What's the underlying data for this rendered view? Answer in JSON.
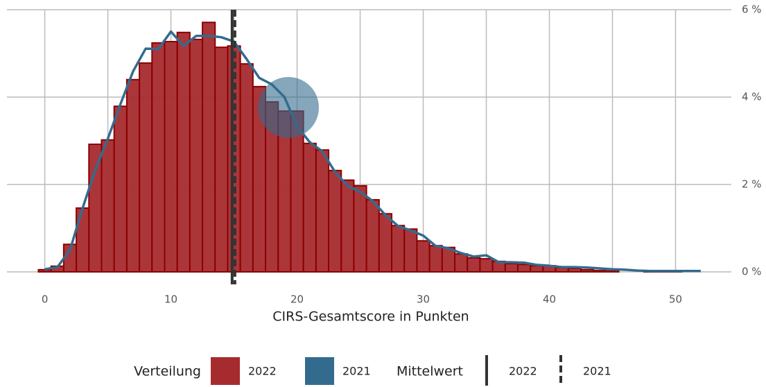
{
  "chart_data": {
    "type": "histogram",
    "xlabel": "CIRS-Gesamtscore in Punkten",
    "xlim": [
      -3,
      53.6
    ],
    "ylim": [
      0,
      6
    ],
    "xticks": [
      0,
      10,
      20,
      30,
      40,
      50
    ],
    "xgrid_minor": [
      5,
      15,
      25,
      35,
      45
    ],
    "yticks": [
      {
        "value": 0,
        "label": "0 %"
      },
      {
        "value": 2,
        "label": "2 %"
      },
      {
        "value": 4,
        "label": "4 %"
      },
      {
        "value": 6,
        "label": "6 %"
      }
    ],
    "grid": true,
    "legend_position": "bottom",
    "legend_titles": {
      "fill": "Verteilung",
      "linetype": "Mittelwert"
    },
    "series": [
      {
        "name": "2022",
        "type": "histogram",
        "color": "#a62b2f",
        "edgecolor": "#8b0000",
        "bins": [
          -0.5,
          0.5,
          1.5,
          2.5,
          3.5,
          4.5,
          5.5,
          6.5,
          7.5,
          8.5,
          9.5,
          10.5,
          11.5,
          12.5,
          13.5,
          14.5,
          15.5,
          16.5,
          17.5,
          18.5,
          19.5,
          20.5,
          21.5,
          22.5,
          23.5,
          24.5,
          25.5,
          26.5,
          27.5,
          28.5,
          29.5,
          30.5,
          31.5,
          32.5,
          33.5,
          34.5,
          35.5,
          36.5,
          37.5,
          38.5,
          39.5,
          40.5,
          41.5,
          42.5,
          43.5,
          44.5,
          45.5,
          46.5,
          47.5,
          48.5,
          49.5,
          50.5
        ],
        "values": [
          0.05,
          0.13,
          0.63,
          1.46,
          2.92,
          3.02,
          3.79,
          4.4,
          4.78,
          5.24,
          5.27,
          5.48,
          5.32,
          5.71,
          5.14,
          5.17,
          4.76,
          4.24,
          3.89,
          3.68,
          3.68,
          2.94,
          2.79,
          2.32,
          2.1,
          1.97,
          1.65,
          1.33,
          1.06,
          0.98,
          0.71,
          0.6,
          0.56,
          0.41,
          0.32,
          0.3,
          0.24,
          0.19,
          0.17,
          0.14,
          0.14,
          0.1,
          0.08,
          0.05,
          0.03,
          0.02,
          0,
          0,
          0.02,
          0.02,
          0.02
        ]
      },
      {
        "name": "2021",
        "type": "line",
        "color": "#336b8e",
        "x": [
          0,
          1,
          2,
          3,
          4,
          5,
          6,
          7,
          8,
          9,
          10,
          11,
          12,
          13,
          14,
          15,
          16,
          17,
          18,
          19,
          20,
          21,
          22,
          23,
          24,
          25,
          26,
          27,
          28,
          29,
          30,
          31,
          32,
          33,
          34,
          35,
          36,
          37,
          38,
          39,
          40,
          41,
          42,
          43,
          44,
          45,
          46,
          47,
          48,
          49,
          50,
          51,
          52
        ],
        "values": [
          0.06,
          0.11,
          0.5,
          1.46,
          2.33,
          3.05,
          3.84,
          4.59,
          5.11,
          5.1,
          5.5,
          5.17,
          5.4,
          5.4,
          5.37,
          5.27,
          4.87,
          4.44,
          4.29,
          4.0,
          3.33,
          2.97,
          2.76,
          2.29,
          1.97,
          1.83,
          1.62,
          1.3,
          1.05,
          0.95,
          0.83,
          0.59,
          0.54,
          0.43,
          0.35,
          0.38,
          0.22,
          0.22,
          0.21,
          0.16,
          0.14,
          0.11,
          0.11,
          0.1,
          0.08,
          0.06,
          0.05,
          0.03,
          0.02,
          0.02,
          0.02,
          0.02,
          0.02
        ]
      }
    ],
    "mean_lines": [
      {
        "name": "2022",
        "value": 14.85,
        "style": "solid",
        "color": "#333333"
      },
      {
        "name": "2021",
        "value": 15.07,
        "style": "dashed",
        "color": "#333333"
      }
    ]
  }
}
